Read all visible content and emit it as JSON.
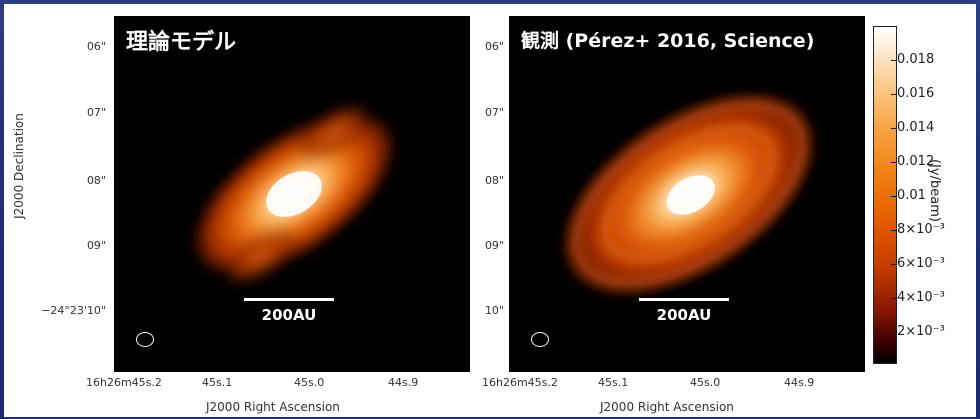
{
  "left_panel": {
    "title": "理論モデル",
    "scale_label": "200AU",
    "y_ticks": [
      "06\"",
      "07\"",
      "08\"",
      "09\"",
      "−24°23'10\""
    ],
    "x_ticks": [
      "16h26m45s.2",
      "45s.1",
      "45s.0",
      "44s.9"
    ],
    "x_label": "J2000 Right Ascension",
    "y_label": "J2000 Declination"
  },
  "right_panel": {
    "title": "観測 (Pérez+ 2016, Science)",
    "scale_label": "200AU",
    "y_ticks": [
      "06\"",
      "07\"",
      "08\"",
      "09\"",
      "10\""
    ],
    "x_ticks": [
      "16h26m45s.2",
      "45s.1",
      "45s.0",
      "44s.9"
    ],
    "x_label": "J2000 Right Ascension"
  },
  "colorbar": {
    "unit": "(Jy/beam)",
    "ticks": [
      "0.018",
      "0.016",
      "0.014",
      "0.012",
      "0.01",
      "8×10⁻³",
      "6×10⁻³",
      "4×10⁻³",
      "2×10⁻³"
    ]
  }
}
